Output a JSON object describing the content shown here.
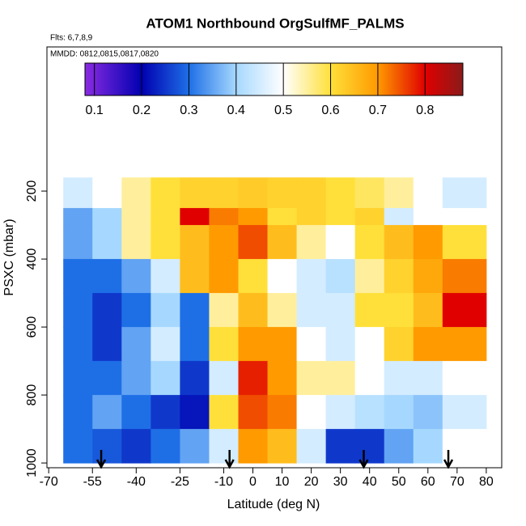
{
  "chart_data": {
    "type": "heatmap",
    "title": "ATOM1 Northbound OrgSulfMF_PALMS",
    "flights": "Flts: 6,7,8,9",
    "dates": "MMDD: 0812,0815,0817,0820",
    "xlabel": "Latitude (deg N)",
    "ylabel": "PSXC (mbar)",
    "xlim": [
      -70.6,
      85.3
    ],
    "ylim": [
      1014,
      -224
    ],
    "xticks": [
      -70,
      -55,
      -40,
      -25,
      -10,
      0,
      10,
      20,
      30,
      40,
      50,
      60,
      70,
      80
    ],
    "yticks": [
      200,
      400,
      600,
      800,
      1000
    ],
    "x_edges": [
      -65,
      -55,
      -45,
      -35,
      -25,
      -15,
      -5,
      5,
      15,
      25,
      35,
      45,
      55,
      65,
      80
    ],
    "y_edges": [
      160,
      250,
      300,
      400,
      500,
      600,
      700,
      800,
      900,
      1000
    ],
    "values": [
      [
        0.45,
        0.5,
        0.55,
        0.6,
        0.62,
        0.62,
        0.63,
        0.62,
        0.62,
        0.6,
        0.58,
        0.55,
        0.5,
        0.45
      ],
      [
        0.35,
        0.4,
        0.55,
        0.6,
        0.8,
        0.72,
        0.7,
        0.6,
        0.62,
        0.6,
        0.62,
        0.45,
        0.5,
        0.5
      ],
      [
        0.35,
        0.4,
        0.55,
        0.6,
        0.65,
        0.7,
        0.75,
        0.65,
        0.55,
        0.5,
        0.6,
        0.65,
        0.7,
        0.6
      ],
      [
        0.3,
        0.3,
        0.35,
        0.45,
        0.65,
        0.7,
        0.6,
        0.5,
        0.45,
        0.42,
        0.55,
        0.62,
        0.68,
        0.72
      ],
      [
        0.3,
        0.25,
        0.3,
        0.4,
        0.3,
        0.55,
        0.65,
        0.55,
        0.45,
        0.45,
        0.6,
        0.6,
        0.65,
        0.8
      ],
      [
        0.3,
        0.25,
        0.35,
        0.45,
        0.3,
        0.6,
        0.7,
        0.7,
        0.5,
        0.45,
        0.5,
        0.62,
        0.7,
        0.7
      ],
      [
        0.3,
        0.3,
        0.35,
        0.4,
        0.25,
        0.45,
        0.78,
        0.7,
        0.55,
        0.55,
        0.5,
        0.45,
        0.45,
        0.5
      ],
      [
        0.3,
        0.35,
        0.3,
        0.25,
        0.22,
        0.6,
        0.75,
        0.72,
        0.5,
        0.45,
        0.42,
        0.4,
        0.38,
        0.45
      ],
      [
        0.3,
        0.28,
        0.25,
        0.3,
        0.35,
        0.45,
        0.7,
        0.65,
        0.45,
        0.25,
        0.25,
        0.35,
        0.4,
        0.5
      ]
    ],
    "colorbar_lim": [
      0.08,
      0.88
    ],
    "colorbar_ticks": [
      0.1,
      0.2,
      0.3,
      0.4,
      0.5,
      0.6,
      0.7,
      0.8
    ],
    "colorscale": [
      [
        0.08,
        "#8a2be2"
      ],
      [
        0.2,
        "#0000b0"
      ],
      [
        0.3,
        "#1e6fe6"
      ],
      [
        0.4,
        "#a6d8ff"
      ],
      [
        0.5,
        "#ffffff"
      ],
      [
        0.6,
        "#ffe03a"
      ],
      [
        0.7,
        "#ff9a00"
      ],
      [
        0.8,
        "#e00000"
      ],
      [
        0.88,
        "#8b1a1a"
      ]
    ],
    "arrows_x": [
      -52,
      -8,
      38,
      67
    ]
  }
}
